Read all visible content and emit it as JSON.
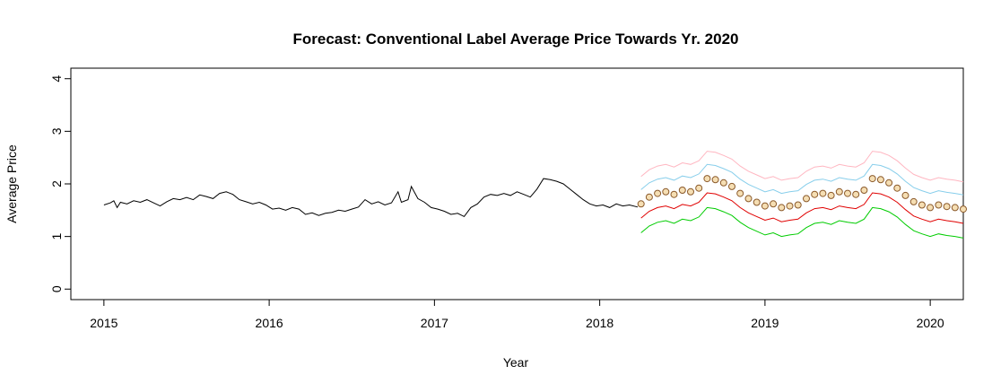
{
  "chart_data": {
    "type": "line",
    "title": "Forecast: Conventional Label Average Price Towards Yr. 2020",
    "xlabel": "Year",
    "ylabel": "Average Price",
    "xlim": [
      2014.8,
      2020.2
    ],
    "ylim": [
      -0.2,
      4.2
    ],
    "x_ticks": [
      2015,
      2016,
      2017,
      2018,
      2019,
      2020
    ],
    "y_ticks": [
      0,
      1,
      2,
      3,
      4
    ],
    "grid": false,
    "legend": "none",
    "observed_period": {
      "start": 2015.0,
      "end": 2018.23
    },
    "forecast_period": {
      "start": 2018.25,
      "end": 2020.2
    },
    "series": [
      {
        "role": "observed",
        "color": "#000000",
        "style": "line",
        "points": [
          [
            2015.0,
            1.6
          ],
          [
            2015.04,
            1.64
          ],
          [
            2015.06,
            1.68
          ],
          [
            2015.08,
            1.55
          ],
          [
            2015.1,
            1.65
          ],
          [
            2015.14,
            1.62
          ],
          [
            2015.18,
            1.68
          ],
          [
            2015.22,
            1.65
          ],
          [
            2015.26,
            1.7
          ],
          [
            2015.3,
            1.64
          ],
          [
            2015.34,
            1.58
          ],
          [
            2015.38,
            1.66
          ],
          [
            2015.42,
            1.72
          ],
          [
            2015.46,
            1.7
          ],
          [
            2015.5,
            1.74
          ],
          [
            2015.54,
            1.7
          ],
          [
            2015.58,
            1.79
          ],
          [
            2015.62,
            1.76
          ],
          [
            2015.66,
            1.72
          ],
          [
            2015.7,
            1.82
          ],
          [
            2015.74,
            1.85
          ],
          [
            2015.78,
            1.8
          ],
          [
            2015.82,
            1.7
          ],
          [
            2015.86,
            1.66
          ],
          [
            2015.9,
            1.62
          ],
          [
            2015.94,
            1.65
          ],
          [
            2015.98,
            1.6
          ],
          [
            2016.02,
            1.52
          ],
          [
            2016.06,
            1.54
          ],
          [
            2016.1,
            1.5
          ],
          [
            2016.14,
            1.55
          ],
          [
            2016.18,
            1.52
          ],
          [
            2016.22,
            1.42
          ],
          [
            2016.26,
            1.45
          ],
          [
            2016.3,
            1.4
          ],
          [
            2016.34,
            1.44
          ],
          [
            2016.38,
            1.46
          ],
          [
            2016.42,
            1.5
          ],
          [
            2016.46,
            1.48
          ],
          [
            2016.5,
            1.52
          ],
          [
            2016.54,
            1.56
          ],
          [
            2016.58,
            1.7
          ],
          [
            2016.62,
            1.62
          ],
          [
            2016.66,
            1.66
          ],
          [
            2016.7,
            1.6
          ],
          [
            2016.74,
            1.64
          ],
          [
            2016.78,
            1.85
          ],
          [
            2016.8,
            1.65
          ],
          [
            2016.84,
            1.7
          ],
          [
            2016.86,
            1.95
          ],
          [
            2016.9,
            1.72
          ],
          [
            2016.94,
            1.65
          ],
          [
            2016.98,
            1.55
          ],
          [
            2017.02,
            1.52
          ],
          [
            2017.06,
            1.48
          ],
          [
            2017.1,
            1.42
          ],
          [
            2017.14,
            1.44
          ],
          [
            2017.18,
            1.38
          ],
          [
            2017.22,
            1.55
          ],
          [
            2017.26,
            1.62
          ],
          [
            2017.3,
            1.75
          ],
          [
            2017.34,
            1.8
          ],
          [
            2017.38,
            1.78
          ],
          [
            2017.42,
            1.82
          ],
          [
            2017.46,
            1.78
          ],
          [
            2017.5,
            1.85
          ],
          [
            2017.54,
            1.8
          ],
          [
            2017.58,
            1.75
          ],
          [
            2017.62,
            1.9
          ],
          [
            2017.66,
            2.1
          ],
          [
            2017.7,
            2.08
          ],
          [
            2017.74,
            2.05
          ],
          [
            2017.78,
            2.0
          ],
          [
            2017.82,
            1.9
          ],
          [
            2017.86,
            1.8
          ],
          [
            2017.9,
            1.7
          ],
          [
            2017.94,
            1.62
          ],
          [
            2017.98,
            1.58
          ],
          [
            2018.02,
            1.6
          ],
          [
            2018.06,
            1.55
          ],
          [
            2018.1,
            1.62
          ],
          [
            2018.14,
            1.58
          ],
          [
            2018.18,
            1.6
          ],
          [
            2018.23,
            1.56
          ]
        ]
      },
      {
        "role": "forecast-mean",
        "color": "#8b5a2b",
        "fill": "#f5deb3",
        "style": "points",
        "points": [
          [
            2018.25,
            1.62
          ],
          [
            2018.3,
            1.75
          ],
          [
            2018.35,
            1.82
          ],
          [
            2018.4,
            1.85
          ],
          [
            2018.45,
            1.8
          ],
          [
            2018.5,
            1.88
          ],
          [
            2018.55,
            1.85
          ],
          [
            2018.6,
            1.92
          ],
          [
            2018.65,
            2.1
          ],
          [
            2018.7,
            2.08
          ],
          [
            2018.75,
            2.02
          ],
          [
            2018.8,
            1.95
          ],
          [
            2018.85,
            1.82
          ],
          [
            2018.9,
            1.72
          ],
          [
            2018.95,
            1.65
          ],
          [
            2019.0,
            1.58
          ],
          [
            2019.05,
            1.62
          ],
          [
            2019.1,
            1.55
          ],
          [
            2019.15,
            1.58
          ],
          [
            2019.2,
            1.6
          ],
          [
            2019.25,
            1.72
          ],
          [
            2019.3,
            1.8
          ],
          [
            2019.35,
            1.82
          ],
          [
            2019.4,
            1.78
          ],
          [
            2019.45,
            1.85
          ],
          [
            2019.5,
            1.82
          ],
          [
            2019.55,
            1.8
          ],
          [
            2019.6,
            1.88
          ],
          [
            2019.65,
            2.1
          ],
          [
            2019.7,
            2.08
          ],
          [
            2019.75,
            2.02
          ],
          [
            2019.8,
            1.92
          ],
          [
            2019.85,
            1.78
          ],
          [
            2019.9,
            1.66
          ],
          [
            2019.95,
            1.6
          ],
          [
            2020.0,
            1.55
          ],
          [
            2020.05,
            1.6
          ],
          [
            2020.1,
            1.57
          ],
          [
            2020.15,
            1.55
          ],
          [
            2020.2,
            1.52
          ]
        ]
      },
      {
        "role": "upper-95",
        "color": "#ffb6c1",
        "style": "line",
        "offset_from_mean": 0.52
      },
      {
        "role": "upper-80",
        "color": "#87ceeb",
        "style": "line",
        "offset_from_mean": 0.27
      },
      {
        "role": "lower-80",
        "color": "#e00000",
        "style": "line",
        "offset_from_mean": -0.27
      },
      {
        "role": "lower-95",
        "color": "#00cc00",
        "style": "line",
        "offset_from_mean": -0.55
      }
    ]
  }
}
